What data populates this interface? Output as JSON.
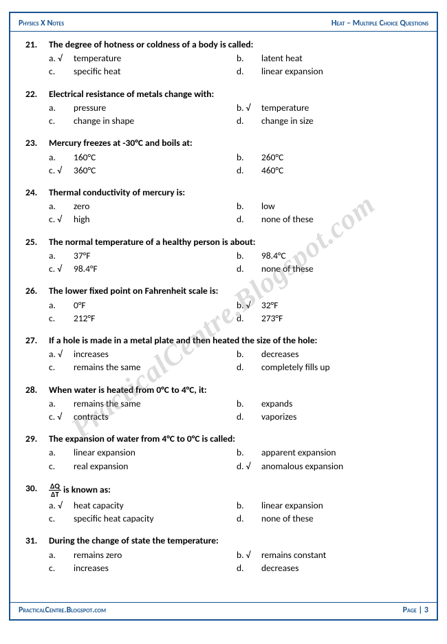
{
  "header": {
    "left": "Physics X Notes",
    "right": "Heat – Multiple Choice Questions"
  },
  "footer": {
    "left": "PracticalCentre.Blogspot.com",
    "right": "Page | 3"
  },
  "watermark": "PracticalCentre.Blogspot.com",
  "questions": [
    {
      "num": "21.",
      "text": "The degree of hotness or coldness of a body is called:",
      "opts": [
        {
          "l": "a. √",
          "t": "temperature"
        },
        {
          "l": "b.",
          "t": "latent heat"
        },
        {
          "l": "c.",
          "t": "specific heat"
        },
        {
          "l": "d.",
          "t": "linear expansion"
        }
      ]
    },
    {
      "num": "22.",
      "text": "Electrical resistance of metals change with:",
      "opts": [
        {
          "l": "a.",
          "t": "pressure"
        },
        {
          "l": "b. √",
          "t": "temperature"
        },
        {
          "l": "c.",
          "t": "change in shape"
        },
        {
          "l": "d.",
          "t": "change in size"
        }
      ]
    },
    {
      "num": "23.",
      "text": "Mercury freezes at -30°C and boils at:",
      "opts": [
        {
          "l": "a.",
          "t": "160°C"
        },
        {
          "l": "b.",
          "t": "260°C"
        },
        {
          "l": "c. √",
          "t": "360°C"
        },
        {
          "l": "d.",
          "t": "460°C"
        }
      ]
    },
    {
      "num": "24.",
      "text": "Thermal conductivity of mercury is:",
      "opts": [
        {
          "l": "a.",
          "t": "zero"
        },
        {
          "l": "b.",
          "t": "low"
        },
        {
          "l": "c. √",
          "t": "high"
        },
        {
          "l": "d.",
          "t": "none of these"
        }
      ]
    },
    {
      "num": "25.",
      "text": "The normal temperature of a healthy person is about:",
      "opts": [
        {
          "l": "a.",
          "t": "37°F"
        },
        {
          "l": "b.",
          "t": "98.4°C"
        },
        {
          "l": "c. √",
          "t": "98.4°F"
        },
        {
          "l": "d.",
          "t": "none of these"
        }
      ]
    },
    {
      "num": "26.",
      "text": "The lower fixed point on Fahrenheit scale is:",
      "opts": [
        {
          "l": "a.",
          "t": "0°F"
        },
        {
          "l": "b. √",
          "t": "32°F"
        },
        {
          "l": "c.",
          "t": "212°F"
        },
        {
          "l": "d.",
          "t": "273°F"
        }
      ]
    },
    {
      "num": "27.",
      "text": "If a hole is made in a metal plate and then heated the size of the hole:",
      "opts": [
        {
          "l": "a. √",
          "t": "increases"
        },
        {
          "l": "b.",
          "t": "decreases"
        },
        {
          "l": "c.",
          "t": "remains the same"
        },
        {
          "l": "d.",
          "t": "completely fills up"
        }
      ]
    },
    {
      "num": "28.",
      "text": "When water is heated from 0°C to 4°C, it:",
      "opts": [
        {
          "l": "a.",
          "t": "remains the same"
        },
        {
          "l": "b.",
          "t": "expands"
        },
        {
          "l": "c. √",
          "t": "contracts"
        },
        {
          "l": "d.",
          "t": "vaporizes"
        }
      ]
    },
    {
      "num": "29.",
      "text": "The expansion of water from 4°C to 0°C is called:",
      "opts": [
        {
          "l": "a.",
          "t": "linear expansion"
        },
        {
          "l": "b.",
          "t": "apparent expansion"
        },
        {
          "l": "c.",
          "t": "real expansion"
        },
        {
          "l": "d. √",
          "t": "anomalous expansion"
        }
      ]
    },
    {
      "num": "30.",
      "text": "ΔQ/ΔT is known as:",
      "frac": true,
      "opts": [
        {
          "l": "a. √",
          "t": "heat capacity"
        },
        {
          "l": "b.",
          "t": "linear expansion"
        },
        {
          "l": "c.",
          "t": "specific heat capacity"
        },
        {
          "l": "d.",
          "t": "none of these"
        }
      ]
    },
    {
      "num": "31.",
      "text": "During the change of state the temperature:",
      "opts": [
        {
          "l": "a.",
          "t": "remains zero"
        },
        {
          "l": "b. √",
          "t": "remains constant"
        },
        {
          "l": "c.",
          "t": "increases"
        },
        {
          "l": "d.",
          "t": "decreases"
        }
      ]
    }
  ]
}
